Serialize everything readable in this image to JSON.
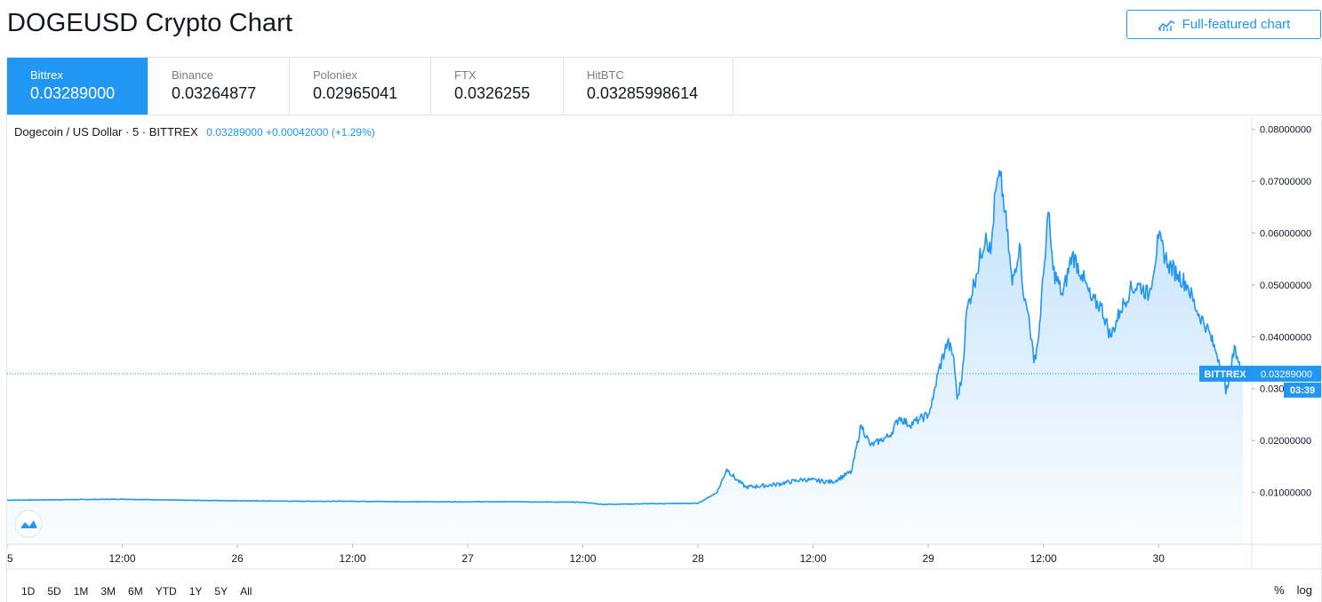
{
  "header": {
    "title": "DOGEUSD Crypto Chart",
    "full_chart_label": "Full-featured chart"
  },
  "exchanges": [
    {
      "name": "Bittrex",
      "price": "0.03289000",
      "active": true
    },
    {
      "name": "Binance",
      "price": "0.03264877",
      "active": false
    },
    {
      "name": "Poloniex",
      "price": "0.02965041",
      "active": false
    },
    {
      "name": "FTX",
      "price": "0.0326255",
      "active": false
    },
    {
      "name": "HitBTC",
      "price": "0.03285998614",
      "active": false
    }
  ],
  "legend": {
    "symbol": "Dogecoin / US Dollar · 5 · BITTREX",
    "values": "0.03289000 +0.00042000 (+1.29%)"
  },
  "range_buttons": [
    "1D",
    "5D",
    "1M",
    "3M",
    "6M",
    "YTD",
    "1Y",
    "5Y",
    "All"
  ],
  "scale_buttons": {
    "percent": "%",
    "log": "log"
  },
  "price_tag": {
    "label": "BITTREX",
    "value": "0.03289000",
    "countdown": "03:39"
  },
  "colors": {
    "line": "#2196f3",
    "active_tab": "#2196f3",
    "text": "#131722"
  },
  "icons": {
    "full_chart": "chart-line-icon",
    "logo": "tradingview-logo-icon"
  },
  "chart_data": {
    "type": "area",
    "symbol": "DOGEUSD",
    "interval_minutes": 5,
    "ylim": [
      0,
      0.0825
    ],
    "yticks": [
      0.01,
      0.02,
      0.03,
      0.04,
      0.05,
      0.06,
      0.07,
      0.08
    ],
    "ytick_labels": [
      "0.01000000",
      "0.02000000",
      "0.03000000",
      "0.04000000",
      "0.05000000",
      "0.06000000",
      "0.07000000",
      "0.08000000"
    ],
    "xlim": [
      "2021-01-25T00:00",
      "2021-01-30T08:47"
    ],
    "xticks": [
      "2021-01-25T00:00",
      "2021-01-25T12:00",
      "2021-01-26T00:00",
      "2021-01-26T12:00",
      "2021-01-27T00:00",
      "2021-01-27T12:00",
      "2021-01-28T00:00",
      "2021-01-28T12:00",
      "2021-01-29T00:00",
      "2021-01-29T12:00",
      "2021-01-30T00:00"
    ],
    "xtick_labels": [
      "5",
      "12:00",
      "26",
      "12:00",
      "27",
      "12:00",
      "28",
      "12:00",
      "29",
      "12:00",
      "30"
    ],
    "last_value": 0.03289,
    "x": [
      "2021-01-25T00:00",
      "2021-01-25T06:00",
      "2021-01-25T12:00",
      "2021-01-25T18:00",
      "2021-01-26T00:00",
      "2021-01-26T06:00",
      "2021-01-26T12:00",
      "2021-01-26T18:00",
      "2021-01-27T00:00",
      "2021-01-27T06:00",
      "2021-01-27T12:00",
      "2021-01-27T14:00",
      "2021-01-27T18:00",
      "2021-01-28T00:00",
      "2021-01-28T02:00",
      "2021-01-28T03:00",
      "2021-01-28T04:00",
      "2021-01-28T05:00",
      "2021-01-28T08:00",
      "2021-01-28T11:00",
      "2021-01-28T14:00",
      "2021-01-28T16:00",
      "2021-01-28T17:00",
      "2021-01-28T18:00",
      "2021-01-28T19:00",
      "2021-01-28T20:00",
      "2021-01-28T21:00",
      "2021-01-28T22:00",
      "2021-01-28T23:00",
      "2021-01-29T00:00",
      "2021-01-29T00:30",
      "2021-01-29T01:00",
      "2021-01-29T02:00",
      "2021-01-29T02:40",
      "2021-01-29T03:00",
      "2021-01-29T03:30",
      "2021-01-29T04:00",
      "2021-01-29T05:00",
      "2021-01-29T06:00",
      "2021-01-29T06:30",
      "2021-01-29T07:00",
      "2021-01-29T07:30",
      "2021-01-29T08:00",
      "2021-01-29T08:45",
      "2021-01-29T09:30",
      "2021-01-29T10:00",
      "2021-01-29T10:30",
      "2021-01-29T11:00",
      "2021-01-29T11:30",
      "2021-01-29T12:00",
      "2021-01-29T12:30",
      "2021-01-29T13:00",
      "2021-01-29T14:00",
      "2021-01-29T15:00",
      "2021-01-29T16:00",
      "2021-01-29T17:00",
      "2021-01-29T18:00",
      "2021-01-29T19:00",
      "2021-01-29T20:00",
      "2021-01-29T21:00",
      "2021-01-29T22:00",
      "2021-01-29T23:00",
      "2021-01-30T00:00",
      "2021-01-30T01:00",
      "2021-01-30T02:00",
      "2021-01-30T03:00",
      "2021-01-30T04:00",
      "2021-01-30T05:00",
      "2021-01-30T06:00",
      "2021-01-30T06:40",
      "2021-01-30T07:00",
      "2021-01-30T07:30",
      "2021-01-30T08:00",
      "2021-01-30T08:30",
      "2021-01-30T08:47"
    ],
    "y": [
      0.0085,
      0.0086,
      0.0087,
      0.0085,
      0.0084,
      0.0083,
      0.0083,
      0.0082,
      0.0082,
      0.0082,
      0.0081,
      0.0077,
      0.0078,
      0.0079,
      0.01,
      0.0145,
      0.0125,
      0.011,
      0.0115,
      0.0125,
      0.012,
      0.014,
      0.023,
      0.019,
      0.02,
      0.021,
      0.0245,
      0.023,
      0.024,
      0.025,
      0.028,
      0.033,
      0.039,
      0.036,
      0.028,
      0.032,
      0.045,
      0.052,
      0.06,
      0.056,
      0.068,
      0.071,
      0.064,
      0.05,
      0.058,
      0.047,
      0.044,
      0.035,
      0.04,
      0.052,
      0.064,
      0.053,
      0.048,
      0.056,
      0.052,
      0.047,
      0.046,
      0.04,
      0.045,
      0.049,
      0.05,
      0.048,
      0.059,
      0.054,
      0.052,
      0.05,
      0.045,
      0.042,
      0.037,
      0.034,
      0.029,
      0.034,
      0.038,
      0.034,
      0.03289
    ]
  }
}
